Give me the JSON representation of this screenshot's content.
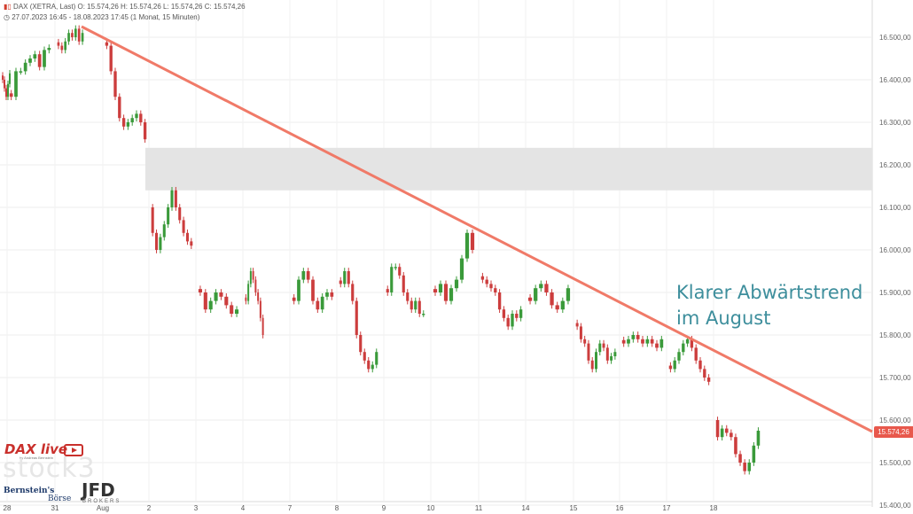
{
  "header": {
    "symbol_icon": "candlestick-icon",
    "line1": "DAX (XETRA, Last)   O: 15.574,26   H: 15.574,26   L: 15.574,26   C: 15.574,26",
    "line2": "27.07.2023 16:45 - 18.08.2023 17:45   (1 Monat, 15 Minuten)",
    "clock_icon": "clock-icon"
  },
  "annotation": {
    "line1": "Klarer Abwärtstrend",
    "line2": "im August"
  },
  "last_price_tag": "15.574,26",
  "logos": {
    "dax_live": "DAX live",
    "dax_live_sub": "by Andreas Bernstein",
    "stock3": "stock3",
    "bernstein": "Bernstein's",
    "boerse": "Börse",
    "jfd": "JFD",
    "jfd_sub": "BROKERS"
  },
  "colors": {
    "up": "#3a9a3a",
    "down": "#cc3d3d",
    "trendline": "#f07a68",
    "zone": "#e4e4e4",
    "annotation": "#3d8e9c",
    "tag": "#e8584c"
  },
  "chart_data": {
    "type": "candlestick",
    "title": "DAX (XETRA, Last)",
    "interval": "15 Minuten",
    "y_axis": {
      "min": 15400,
      "max": 16550,
      "side": "right",
      "ticks": [
        "15.400,00",
        "15.500,00",
        "15.600,00",
        "15.700,00",
        "15.800,00",
        "15.900,00",
        "16.000,00",
        "16.100,00",
        "16.200,00",
        "16.300,00",
        "16.400,00",
        "16.500,00"
      ]
    },
    "x_ticks": [
      {
        "label": "28",
        "sub": ""
      },
      {
        "label": "31",
        "sub": ""
      },
      {
        "label": "Aug",
        "sub": ""
      },
      {
        "label": "2",
        "sub": ""
      },
      {
        "label": "3",
        "sub": ""
      },
      {
        "label": "4",
        "sub": ""
      },
      {
        "label": "7",
        "sub": ""
      },
      {
        "label": "8",
        "sub": ""
      },
      {
        "label": "9",
        "sub": ""
      },
      {
        "label": "10",
        "sub": ""
      },
      {
        "label": "11",
        "sub": ""
      },
      {
        "label": "14",
        "sub": ""
      },
      {
        "label": "15",
        "sub": ""
      },
      {
        "label": "16",
        "sub": ""
      },
      {
        "label": "17",
        "sub": ""
      },
      {
        "label": "18",
        "sub": ""
      }
    ],
    "sessions": [
      {
        "date": "27.07",
        "closes": [
          16400,
          16380,
          16360,
          16390,
          16415
        ]
      },
      {
        "date": "28.07",
        "closes": [
          16360,
          16420,
          16420,
          16440,
          16450,
          16460,
          16430,
          16470,
          16475
        ]
      },
      {
        "date": "31.07",
        "closes": [
          16480,
          16470,
          16490,
          16510,
          16500,
          16520,
          16490,
          16510
        ]
      },
      {
        "date": "01.08",
        "closes": [
          16480,
          16420,
          16360,
          16310,
          16290,
          16300,
          16310,
          16320,
          16300,
          16260
        ]
      },
      {
        "date": "02.08",
        "closes": [
          16040,
          16000,
          16030,
          16060,
          16100,
          16140,
          16100,
          16070,
          16040,
          16020,
          16010
        ]
      },
      {
        "date": "03.08",
        "closes": [
          15900,
          15860,
          15880,
          15900,
          15890,
          15870,
          15850,
          15860
        ]
      },
      {
        "date": "04.08",
        "closes": [
          15880,
          15920,
          15950,
          15930,
          15900,
          15880,
          15840,
          15800
        ]
      },
      {
        "date": "07.08",
        "closes": [
          15880,
          15930,
          15950,
          15930,
          15880,
          15860,
          15890,
          15900,
          15890
        ]
      },
      {
        "date": "08.08",
        "closes": [
          15920,
          15950,
          15920,
          15880,
          15800,
          15760,
          15740,
          15720,
          15730,
          15760
        ]
      },
      {
        "date": "09.08",
        "closes": [
          15900,
          15960,
          15960,
          15940,
          15900,
          15880,
          15860,
          15880,
          15850,
          15850
        ]
      },
      {
        "date": "10.08",
        "closes": [
          15900,
          15920,
          15880,
          15910,
          15930,
          15980,
          16040,
          16000
        ]
      },
      {
        "date": "11.08",
        "closes": [
          15930,
          15920,
          15910,
          15900,
          15860,
          15840,
          15820,
          15850,
          15840,
          15860
        ]
      },
      {
        "date": "14.08",
        "closes": [
          15880,
          15910,
          15920,
          15900,
          15870,
          15860,
          15880,
          15910
        ]
      },
      {
        "date": "15.08",
        "closes": [
          15820,
          15790,
          15780,
          15740,
          15720,
          15760,
          15780,
          15770,
          15740,
          15750,
          15760
        ]
      },
      {
        "date": "16.08",
        "closes": [
          15780,
          15790,
          15800,
          15790,
          15780,
          15790,
          15780,
          15770,
          15790
        ]
      },
      {
        "date": "17.08",
        "closes": [
          15720,
          15740,
          15760,
          15780,
          15790,
          15770,
          15740,
          15720,
          15700,
          15690
        ]
      },
      {
        "date": "18.08",
        "closes": [
          15560,
          15580,
          15570,
          15560,
          15520,
          15500,
          15480,
          15500,
          15540,
          15575
        ]
      }
    ],
    "last": 15574.26,
    "trendline": {
      "from": {
        "date": "31.07",
        "value": 16525
      },
      "to": {
        "date": "18.08 (projected)",
        "value": 15580
      }
    },
    "resistance_zone": {
      "from": 16140,
      "to": 16240
    },
    "grid": true
  }
}
